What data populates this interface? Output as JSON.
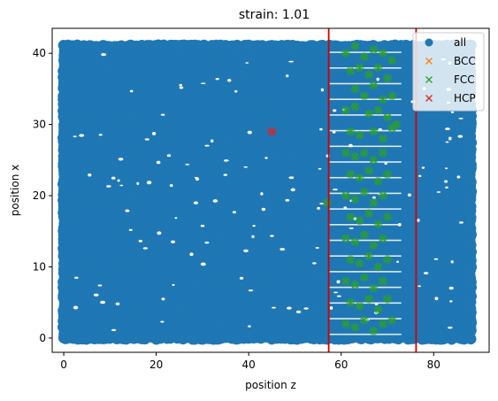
{
  "chart_data": {
    "type": "scatter",
    "title": "strain: 1.01",
    "xlabel": "position z",
    "ylabel": "position x",
    "xlim": [
      -2.5,
      92.0
    ],
    "ylim": [
      -2.0,
      43.5
    ],
    "xticks": [
      0,
      20,
      40,
      60,
      80
    ],
    "yticks": [
      0,
      10,
      20,
      30,
      40
    ],
    "legend_position": "top-right",
    "series": [
      {
        "name": "all",
        "marker": "circle",
        "color": "#1f77b4",
        "region": {
          "x": [
            0,
            88
          ],
          "y": [
            0,
            41
          ]
        }
      },
      {
        "name": "BCC",
        "marker": "x",
        "color": "#ff7f0e",
        "points": []
      },
      {
        "name": "FCC",
        "marker": "x",
        "color": "#2ca02c",
        "points": [
          [
            61,
            40
          ],
          [
            63,
            41
          ],
          [
            65,
            39.5
          ],
          [
            67,
            40.5
          ],
          [
            69,
            40
          ],
          [
            71,
            39
          ],
          [
            62,
            37.5
          ],
          [
            64,
            38
          ],
          [
            66,
            37
          ],
          [
            68,
            38
          ],
          [
            70,
            36.5
          ],
          [
            63,
            35
          ],
          [
            65,
            34
          ],
          [
            67,
            35.5
          ],
          [
            69,
            33.5
          ],
          [
            71,
            34
          ],
          [
            61,
            32
          ],
          [
            63,
            32.5
          ],
          [
            66,
            31.5
          ],
          [
            68,
            32
          ],
          [
            70,
            31
          ],
          [
            72,
            30
          ],
          [
            62,
            29
          ],
          [
            64,
            28.5
          ],
          [
            67,
            29
          ],
          [
            69,
            28
          ],
          [
            71,
            29.5
          ],
          [
            61,
            26
          ],
          [
            63,
            25.5
          ],
          [
            65,
            26
          ],
          [
            67,
            25
          ],
          [
            69,
            26
          ],
          [
            62,
            23
          ],
          [
            64,
            22.5
          ],
          [
            66,
            23.5
          ],
          [
            68,
            22
          ],
          [
            70,
            23
          ],
          [
            57,
            19
          ],
          [
            61,
            20
          ],
          [
            63,
            19.5
          ],
          [
            65,
            20.5
          ],
          [
            67,
            19
          ],
          [
            69,
            20
          ],
          [
            62,
            17
          ],
          [
            64,
            16.5
          ],
          [
            66,
            17.5
          ],
          [
            68,
            16
          ],
          [
            70,
            17
          ],
          [
            61,
            14
          ],
          [
            63,
            13.5
          ],
          [
            65,
            14.5
          ],
          [
            67,
            13
          ],
          [
            69,
            14
          ],
          [
            62,
            11
          ],
          [
            64,
            10.5
          ],
          [
            66,
            11.5
          ],
          [
            68,
            10
          ],
          [
            70,
            11
          ],
          [
            61,
            8
          ],
          [
            63,
            7.5
          ],
          [
            65,
            8.5
          ],
          [
            67,
            7
          ],
          [
            69,
            8
          ],
          [
            62,
            5
          ],
          [
            64,
            4.5
          ],
          [
            66,
            5.5
          ],
          [
            68,
            4
          ],
          [
            70,
            5.5
          ],
          [
            61,
            2
          ],
          [
            63,
            1.5
          ],
          [
            65,
            2.5
          ],
          [
            67,
            1
          ],
          [
            69,
            2
          ],
          [
            71,
            2.5
          ]
        ]
      },
      {
        "name": "HCP",
        "marker": "x",
        "color": "#d62728",
        "points": [
          [
            45,
            29
          ]
        ]
      }
    ],
    "vertical_lines": [
      {
        "x": 57.3,
        "color": "#d40000"
      },
      {
        "x": 76.2,
        "color": "#d40000"
      }
    ]
  }
}
